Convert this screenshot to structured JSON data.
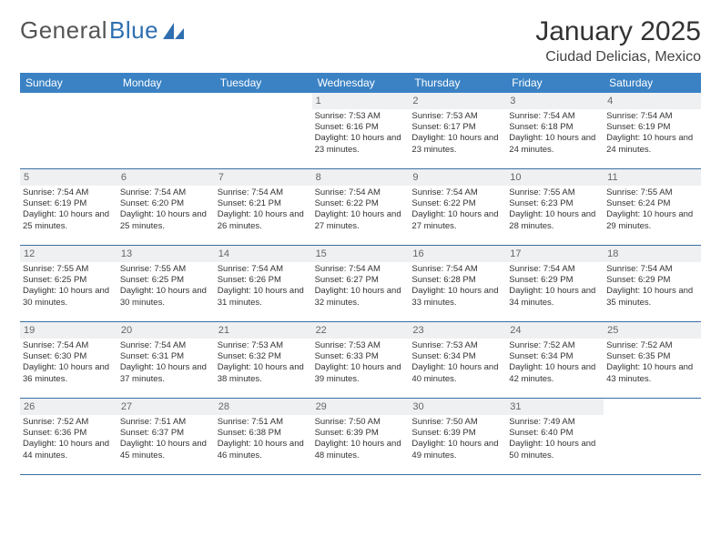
{
  "brand": {
    "word1": "General",
    "word2": "Blue"
  },
  "title": "January 2025",
  "location": "Ciudad Delicias, Mexico",
  "accent_color": "#3a82c4",
  "border_color": "#3a6fa5",
  "daynum_bg": "#eef0f2",
  "weekdays": [
    "Sunday",
    "Monday",
    "Tuesday",
    "Wednesday",
    "Thursday",
    "Friday",
    "Saturday"
  ],
  "weeks": [
    [
      {
        "day": "",
        "lines": []
      },
      {
        "day": "",
        "lines": []
      },
      {
        "day": "",
        "lines": []
      },
      {
        "day": "1",
        "lines": [
          "Sunrise: 7:53 AM",
          "Sunset: 6:16 PM",
          "Daylight: 10 hours and 23 minutes."
        ]
      },
      {
        "day": "2",
        "lines": [
          "Sunrise: 7:53 AM",
          "Sunset: 6:17 PM",
          "Daylight: 10 hours and 23 minutes."
        ]
      },
      {
        "day": "3",
        "lines": [
          "Sunrise: 7:54 AM",
          "Sunset: 6:18 PM",
          "Daylight: 10 hours and 24 minutes."
        ]
      },
      {
        "day": "4",
        "lines": [
          "Sunrise: 7:54 AM",
          "Sunset: 6:19 PM",
          "Daylight: 10 hours and 24 minutes."
        ]
      }
    ],
    [
      {
        "day": "5",
        "lines": [
          "Sunrise: 7:54 AM",
          "Sunset: 6:19 PM",
          "Daylight: 10 hours and 25 minutes."
        ]
      },
      {
        "day": "6",
        "lines": [
          "Sunrise: 7:54 AM",
          "Sunset: 6:20 PM",
          "Daylight: 10 hours and 25 minutes."
        ]
      },
      {
        "day": "7",
        "lines": [
          "Sunrise: 7:54 AM",
          "Sunset: 6:21 PM",
          "Daylight: 10 hours and 26 minutes."
        ]
      },
      {
        "day": "8",
        "lines": [
          "Sunrise: 7:54 AM",
          "Sunset: 6:22 PM",
          "Daylight: 10 hours and 27 minutes."
        ]
      },
      {
        "day": "9",
        "lines": [
          "Sunrise: 7:54 AM",
          "Sunset: 6:22 PM",
          "Daylight: 10 hours and 27 minutes."
        ]
      },
      {
        "day": "10",
        "lines": [
          "Sunrise: 7:55 AM",
          "Sunset: 6:23 PM",
          "Daylight: 10 hours and 28 minutes."
        ]
      },
      {
        "day": "11",
        "lines": [
          "Sunrise: 7:55 AM",
          "Sunset: 6:24 PM",
          "Daylight: 10 hours and 29 minutes."
        ]
      }
    ],
    [
      {
        "day": "12",
        "lines": [
          "Sunrise: 7:55 AM",
          "Sunset: 6:25 PM",
          "Daylight: 10 hours and 30 minutes."
        ]
      },
      {
        "day": "13",
        "lines": [
          "Sunrise: 7:55 AM",
          "Sunset: 6:25 PM",
          "Daylight: 10 hours and 30 minutes."
        ]
      },
      {
        "day": "14",
        "lines": [
          "Sunrise: 7:54 AM",
          "Sunset: 6:26 PM",
          "Daylight: 10 hours and 31 minutes."
        ]
      },
      {
        "day": "15",
        "lines": [
          "Sunrise: 7:54 AM",
          "Sunset: 6:27 PM",
          "Daylight: 10 hours and 32 minutes."
        ]
      },
      {
        "day": "16",
        "lines": [
          "Sunrise: 7:54 AM",
          "Sunset: 6:28 PM",
          "Daylight: 10 hours and 33 minutes."
        ]
      },
      {
        "day": "17",
        "lines": [
          "Sunrise: 7:54 AM",
          "Sunset: 6:29 PM",
          "Daylight: 10 hours and 34 minutes."
        ]
      },
      {
        "day": "18",
        "lines": [
          "Sunrise: 7:54 AM",
          "Sunset: 6:29 PM",
          "Daylight: 10 hours and 35 minutes."
        ]
      }
    ],
    [
      {
        "day": "19",
        "lines": [
          "Sunrise: 7:54 AM",
          "Sunset: 6:30 PM",
          "Daylight: 10 hours and 36 minutes."
        ]
      },
      {
        "day": "20",
        "lines": [
          "Sunrise: 7:54 AM",
          "Sunset: 6:31 PM",
          "Daylight: 10 hours and 37 minutes."
        ]
      },
      {
        "day": "21",
        "lines": [
          "Sunrise: 7:53 AM",
          "Sunset: 6:32 PM",
          "Daylight: 10 hours and 38 minutes."
        ]
      },
      {
        "day": "22",
        "lines": [
          "Sunrise: 7:53 AM",
          "Sunset: 6:33 PM",
          "Daylight: 10 hours and 39 minutes."
        ]
      },
      {
        "day": "23",
        "lines": [
          "Sunrise: 7:53 AM",
          "Sunset: 6:34 PM",
          "Daylight: 10 hours and 40 minutes."
        ]
      },
      {
        "day": "24",
        "lines": [
          "Sunrise: 7:52 AM",
          "Sunset: 6:34 PM",
          "Daylight: 10 hours and 42 minutes."
        ]
      },
      {
        "day": "25",
        "lines": [
          "Sunrise: 7:52 AM",
          "Sunset: 6:35 PM",
          "Daylight: 10 hours and 43 minutes."
        ]
      }
    ],
    [
      {
        "day": "26",
        "lines": [
          "Sunrise: 7:52 AM",
          "Sunset: 6:36 PM",
          "Daylight: 10 hours and 44 minutes."
        ]
      },
      {
        "day": "27",
        "lines": [
          "Sunrise: 7:51 AM",
          "Sunset: 6:37 PM",
          "Daylight: 10 hours and 45 minutes."
        ]
      },
      {
        "day": "28",
        "lines": [
          "Sunrise: 7:51 AM",
          "Sunset: 6:38 PM",
          "Daylight: 10 hours and 46 minutes."
        ]
      },
      {
        "day": "29",
        "lines": [
          "Sunrise: 7:50 AM",
          "Sunset: 6:39 PM",
          "Daylight: 10 hours and 48 minutes."
        ]
      },
      {
        "day": "30",
        "lines": [
          "Sunrise: 7:50 AM",
          "Sunset: 6:39 PM",
          "Daylight: 10 hours and 49 minutes."
        ]
      },
      {
        "day": "31",
        "lines": [
          "Sunrise: 7:49 AM",
          "Sunset: 6:40 PM",
          "Daylight: 10 hours and 50 minutes."
        ]
      },
      {
        "day": "",
        "lines": []
      }
    ]
  ]
}
